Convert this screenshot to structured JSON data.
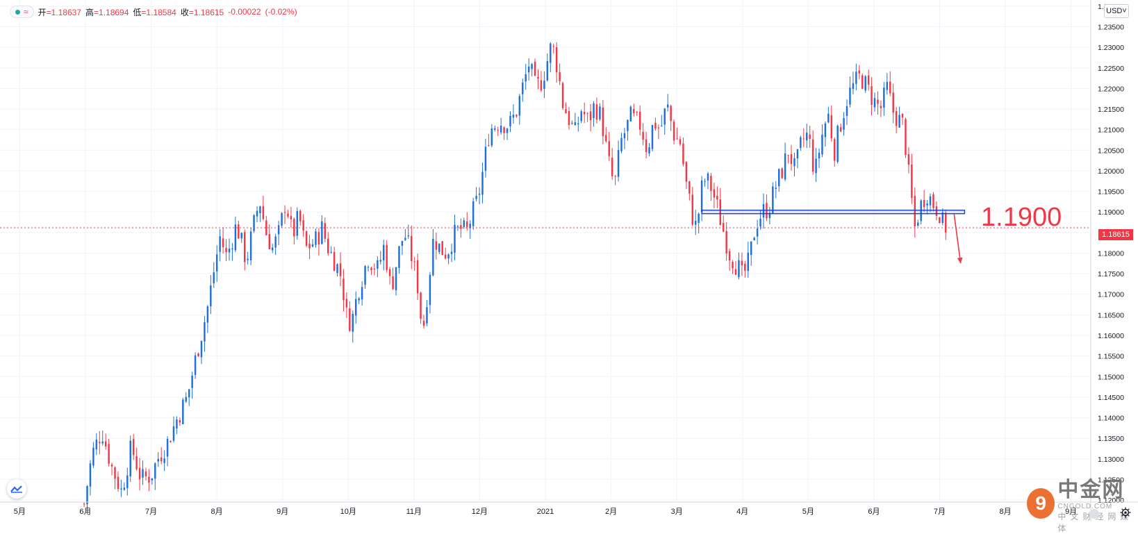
{
  "legend": {
    "open_label": "开",
    "open_value": "=1.18637",
    "high_label": "高",
    "high_value": "=1.18694",
    "low_label": "低",
    "low_value": "=1.18584",
    "close_label": "收",
    "close_value": "=1.18615",
    "change_value": "-0.00022",
    "change_pct": "(-0.02%)",
    "icon": "wave-icon"
  },
  "currency": "USD",
  "last_price_tag": "1.18615",
  "annotation": {
    "level_text": "1.1900",
    "color": "#f23645"
  },
  "watermark": {
    "logo_char": "9",
    "name": "中金网",
    "domain": "CNGOLD.COM",
    "sub": "中文财经网媒体"
  },
  "colors": {
    "up": "#1e6fd9",
    "down": "#f23645",
    "grid": "#f0f3fa",
    "axis_text": "#131722"
  },
  "chart_data": {
    "type": "candlestick",
    "title": "",
    "xlabel": "",
    "ylabel": "",
    "ylim": [
      1.1195,
      1.2415
    ],
    "y_ticks": [
      "1.12000",
      "1.12500",
      "1.13000",
      "1.13500",
      "1.14000",
      "1.14500",
      "1.15000",
      "1.15500",
      "1.16000",
      "1.16500",
      "1.17000",
      "1.17500",
      "1.18000",
      "1.18500",
      "1.19000",
      "1.19500",
      "1.20000",
      "1.20500",
      "1.21000",
      "1.21500",
      "1.22000",
      "1.22500",
      "1.23000",
      "1.23500",
      "1.24000"
    ],
    "x_tick_labels": [
      "5月",
      "6月",
      "7月",
      "8月",
      "9月",
      "10月",
      "11月",
      "12月",
      "2021",
      "2月",
      "3月",
      "4月",
      "5月",
      "6月",
      "7月",
      "8月",
      "9月"
    ],
    "x_tick_positions": [
      0,
      1,
      2,
      3,
      4,
      5,
      6,
      7,
      8,
      9,
      10,
      11,
      12,
      13,
      14,
      15,
      16
    ],
    "x_range": [
      -0.3,
      16.3
    ],
    "last_price": 1.18615,
    "horizontal_level": 1.19,
    "level_start_x": 10.38,
    "level_end_x": 14.38,
    "trend_arrow": {
      "from": [
        14.22,
        1.1895
      ],
      "to": [
        14.32,
        1.1775
      ]
    },
    "close_path": [
      [
        0.98,
        1.119
      ],
      [
        1.1,
        1.131
      ],
      [
        1.25,
        1.137
      ],
      [
        1.4,
        1.128
      ],
      [
        1.55,
        1.122
      ],
      [
        1.7,
        1.133
      ],
      [
        1.85,
        1.125
      ],
      [
        2.0,
        1.126
      ],
      [
        2.1,
        1.13
      ],
      [
        2.25,
        1.134
      ],
      [
        2.4,
        1.14
      ],
      [
        2.55,
        1.145
      ],
      [
        2.7,
        1.156
      ],
      [
        2.85,
        1.166
      ],
      [
        2.97,
        1.177
      ],
      [
        3.05,
        1.184
      ],
      [
        3.15,
        1.179
      ],
      [
        3.3,
        1.187
      ],
      [
        3.45,
        1.178
      ],
      [
        3.55,
        1.186
      ],
      [
        3.65,
        1.193
      ],
      [
        3.75,
        1.185
      ],
      [
        3.85,
        1.181
      ],
      [
        3.95,
        1.185
      ],
      [
        4.05,
        1.193
      ],
      [
        4.15,
        1.184
      ],
      [
        4.25,
        1.189
      ],
      [
        4.35,
        1.181
      ],
      [
        4.5,
        1.183
      ],
      [
        4.6,
        1.186
      ],
      [
        4.7,
        1.181
      ],
      [
        4.8,
        1.178
      ],
      [
        4.9,
        1.174
      ],
      [
        4.97,
        1.165
      ],
      [
        5.05,
        1.163
      ],
      [
        5.15,
        1.171
      ],
      [
        5.3,
        1.179
      ],
      [
        5.45,
        1.176
      ],
      [
        5.55,
        1.182
      ],
      [
        5.65,
        1.171
      ],
      [
        5.75,
        1.179
      ],
      [
        5.85,
        1.185
      ],
      [
        5.95,
        1.18
      ],
      [
        6.05,
        1.173
      ],
      [
        6.1,
        1.165
      ],
      [
        6.15,
        1.163
      ],
      [
        6.2,
        1.17
      ],
      [
        6.3,
        1.184
      ],
      [
        6.4,
        1.181
      ],
      [
        6.5,
        1.18
      ],
      [
        6.6,
        1.184
      ],
      [
        6.7,
        1.186
      ],
      [
        6.8,
        1.185
      ],
      [
        6.9,
        1.19
      ],
      [
        6.97,
        1.193
      ],
      [
        7.05,
        1.2
      ],
      [
        7.15,
        1.21
      ],
      [
        7.3,
        1.212
      ],
      [
        7.45,
        1.211
      ],
      [
        7.55,
        1.214
      ],
      [
        7.65,
        1.22
      ],
      [
        7.75,
        1.226
      ],
      [
        7.85,
        1.22
      ],
      [
        7.95,
        1.222
      ],
      [
        8.05,
        1.228
      ],
      [
        8.1,
        1.231
      ],
      [
        8.2,
        1.224
      ],
      [
        8.25,
        1.217
      ],
      [
        8.35,
        1.213
      ],
      [
        8.45,
        1.209
      ],
      [
        8.55,
        1.215
      ],
      [
        8.65,
        1.212
      ],
      [
        8.75,
        1.216
      ],
      [
        8.85,
        1.213
      ],
      [
        8.95,
        1.203
      ],
      [
        9.05,
        1.196
      ],
      [
        9.15,
        1.207
      ],
      [
        9.3,
        1.213
      ],
      [
        9.45,
        1.211
      ],
      [
        9.55,
        1.205
      ],
      [
        9.65,
        1.212
      ],
      [
        9.75,
        1.21
      ],
      [
        9.85,
        1.216
      ],
      [
        9.97,
        1.208
      ],
      [
        10.05,
        1.207
      ],
      [
        10.15,
        1.196
      ],
      [
        10.25,
        1.188
      ],
      [
        10.3,
        1.186
      ],
      [
        10.4,
        1.198
      ],
      [
        10.5,
        1.197
      ],
      [
        10.6,
        1.192
      ],
      [
        10.7,
        1.186
      ],
      [
        10.8,
        1.18
      ],
      [
        10.95,
        1.176
      ],
      [
        11.0,
        1.174
      ],
      [
        11.1,
        1.178
      ],
      [
        11.2,
        1.187
      ],
      [
        11.3,
        1.19
      ],
      [
        11.4,
        1.191
      ],
      [
        11.5,
        1.196
      ],
      [
        11.6,
        1.2
      ],
      [
        11.7,
        1.205
      ],
      [
        11.8,
        1.2
      ],
      [
        11.9,
        1.207
      ],
      [
        12.0,
        1.209
      ],
      [
        12.1,
        1.199
      ],
      [
        12.2,
        1.208
      ],
      [
        12.3,
        1.214
      ],
      [
        12.4,
        1.205
      ],
      [
        12.5,
        1.212
      ],
      [
        12.6,
        1.218
      ],
      [
        12.7,
        1.221
      ],
      [
        12.8,
        1.223
      ],
      [
        12.9,
        1.22
      ],
      [
        13.0,
        1.217
      ],
      [
        13.1,
        1.215
      ],
      [
        13.2,
        1.22
      ],
      [
        13.3,
        1.214
      ],
      [
        13.4,
        1.212
      ],
      [
        13.45,
        1.211
      ],
      [
        13.52,
        1.2
      ],
      [
        13.58,
        1.192
      ],
      [
        13.62,
        1.186
      ],
      [
        13.7,
        1.191
      ],
      [
        13.8,
        1.195
      ],
      [
        13.9,
        1.192
      ],
      [
        14.0,
        1.19
      ],
      [
        14.05,
        1.187
      ],
      [
        14.12,
        1.186
      ]
    ],
    "last_candle_x": 14.12
  }
}
